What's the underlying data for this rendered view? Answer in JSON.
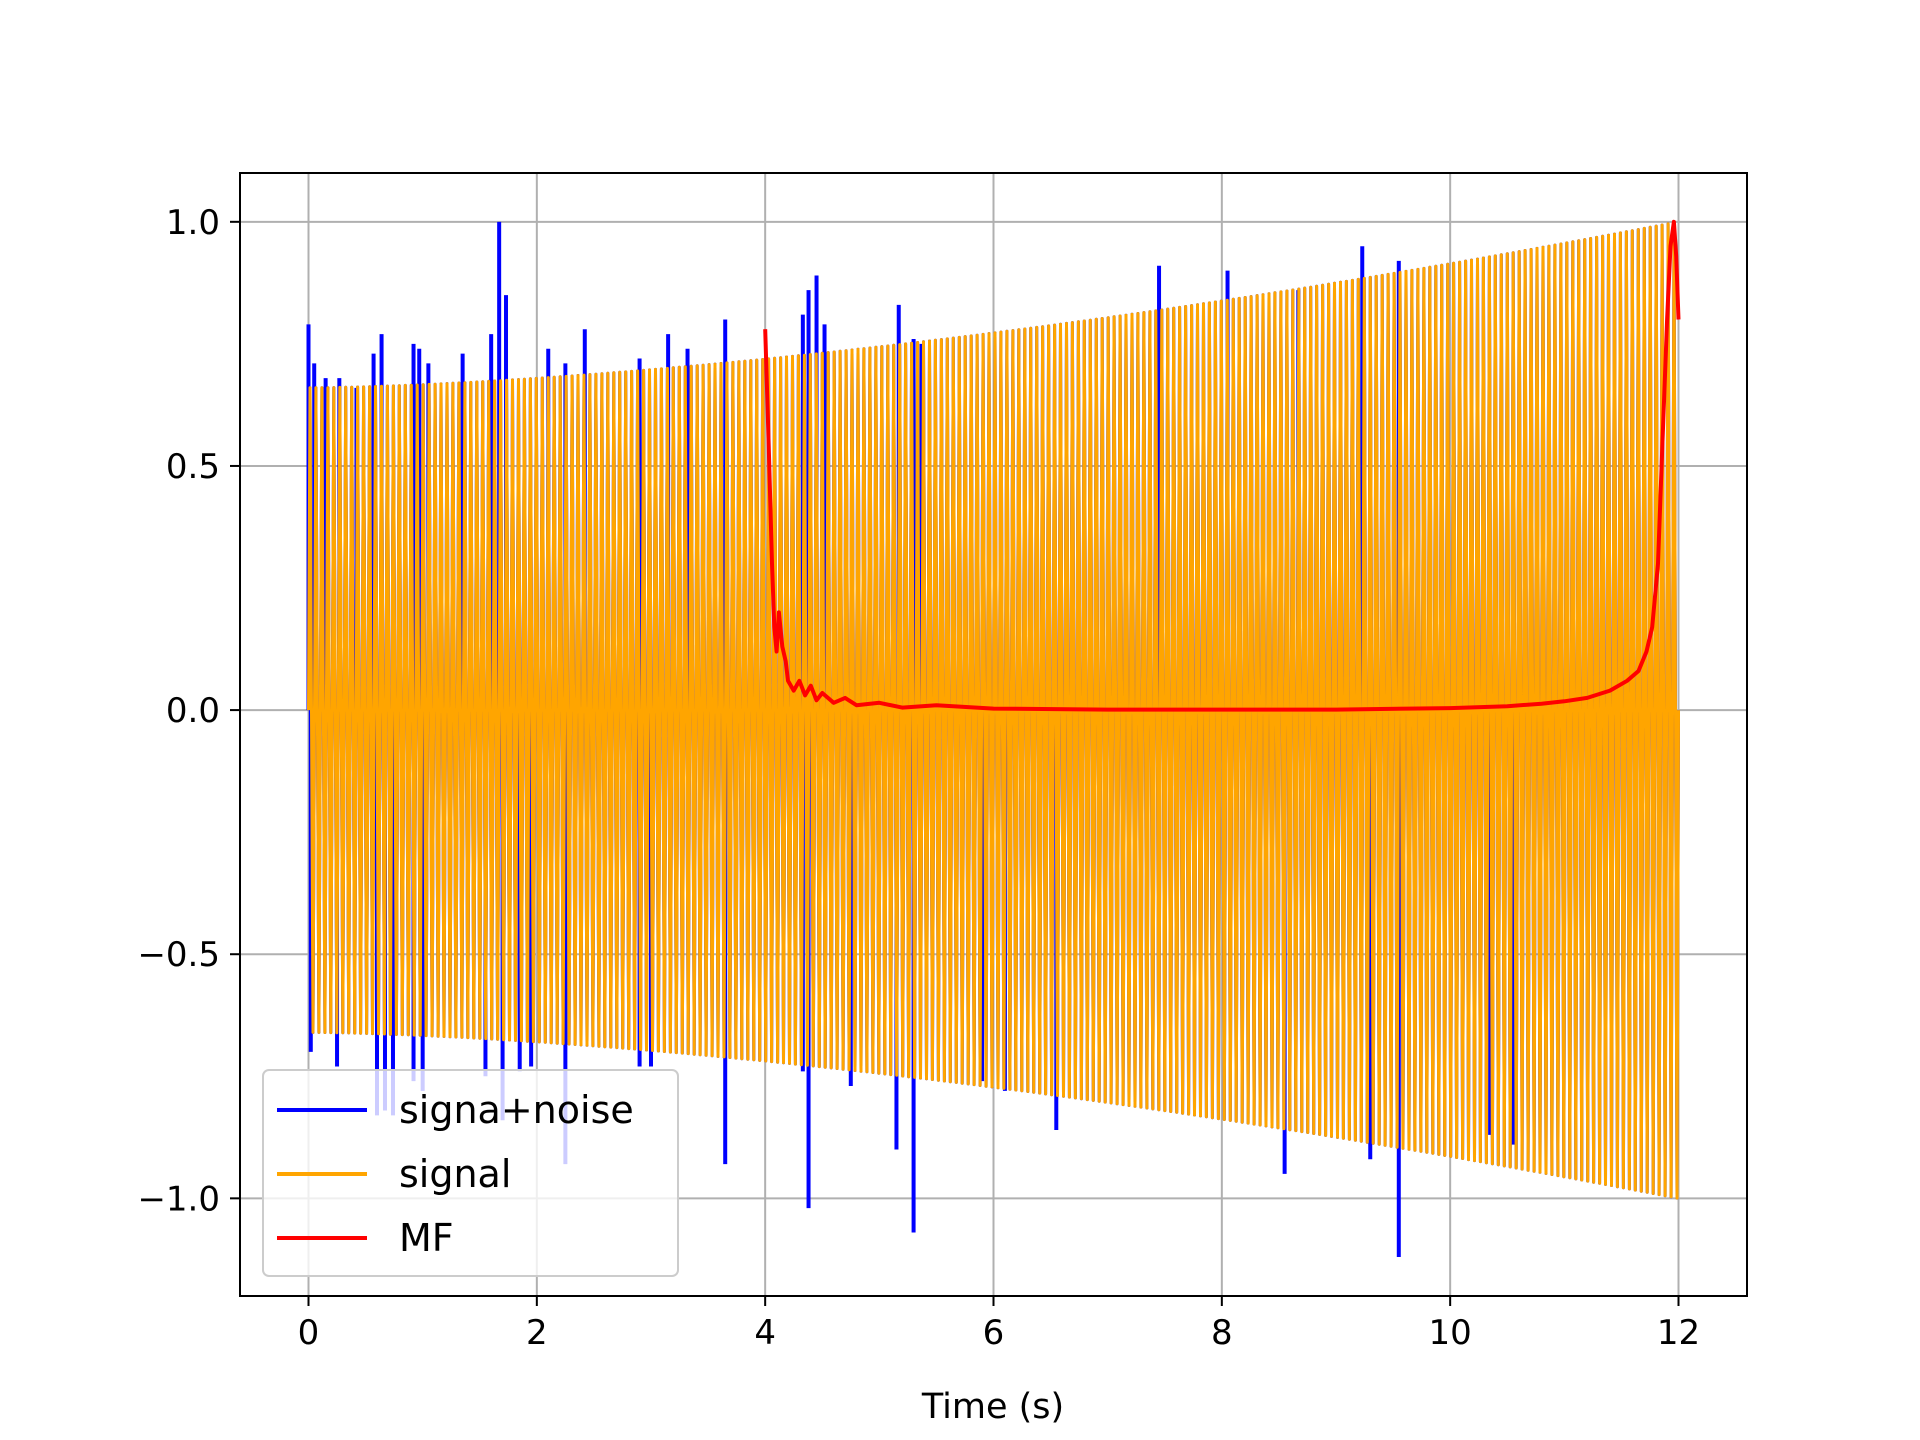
{
  "chart_data": {
    "type": "line",
    "title": "",
    "xlabel": "Time (s)",
    "ylabel": "",
    "xlim": [
      -0.6,
      12.6
    ],
    "ylim": [
      -1.2,
      1.1
    ],
    "x_ticks": [
      0,
      2,
      4,
      6,
      8,
      10,
      12
    ],
    "x_tick_labels": [
      "0",
      "2",
      "4",
      "6",
      "8",
      "10",
      "12"
    ],
    "y_ticks": [
      -1.0,
      -0.5,
      0.0,
      0.5,
      1.0
    ],
    "y_tick_labels": [
      "−1.0",
      "−0.5",
      "0.0",
      "0.5",
      "1.0"
    ],
    "grid": true,
    "legend_position": "lower-left",
    "series": [
      {
        "name": "signa+noise",
        "color": "#0000ff",
        "kind": "oscillating",
        "x_range": [
          0,
          12
        ],
        "envelope": {
          "start_amp": 0.66,
          "end_amp": 1.0
        },
        "spikes_up": [
          [
            0.0,
            0.79
          ],
          [
            0.05,
            0.71
          ],
          [
            0.15,
            0.68
          ],
          [
            0.27,
            0.68
          ],
          [
            0.42,
            0.66
          ],
          [
            0.57,
            0.73
          ],
          [
            0.64,
            0.77
          ],
          [
            0.92,
            0.75
          ],
          [
            0.97,
            0.74
          ],
          [
            1.05,
            0.71
          ],
          [
            1.35,
            0.73
          ],
          [
            1.6,
            0.77
          ],
          [
            1.67,
            1.0
          ],
          [
            1.73,
            0.85
          ],
          [
            2.1,
            0.74
          ],
          [
            2.25,
            0.71
          ],
          [
            2.42,
            0.78
          ],
          [
            2.9,
            0.72
          ],
          [
            3.15,
            0.77
          ],
          [
            3.32,
            0.74
          ],
          [
            3.65,
            0.8
          ],
          [
            4.33,
            0.81
          ],
          [
            4.38,
            0.86
          ],
          [
            4.45,
            0.89
          ],
          [
            4.52,
            0.79
          ],
          [
            5.17,
            0.83
          ],
          [
            5.3,
            0.76
          ],
          [
            5.37,
            0.75
          ],
          [
            7.45,
            0.91
          ],
          [
            8.05,
            0.9
          ],
          [
            8.67,
            0.86
          ],
          [
            9.23,
            0.95
          ],
          [
            9.55,
            0.92
          ]
        ],
        "spikes_down": [
          [
            0.02,
            -0.7
          ],
          [
            0.25,
            -0.73
          ],
          [
            0.6,
            -0.83
          ],
          [
            0.67,
            -0.82
          ],
          [
            0.74,
            -0.83
          ],
          [
            0.92,
            -0.76
          ],
          [
            1.0,
            -0.78
          ],
          [
            1.55,
            -0.75
          ],
          [
            1.7,
            -0.84
          ],
          [
            1.85,
            -0.74
          ],
          [
            1.95,
            -0.73
          ],
          [
            2.25,
            -0.93
          ],
          [
            2.9,
            -0.73
          ],
          [
            3.0,
            -0.73
          ],
          [
            3.65,
            -0.93
          ],
          [
            4.33,
            -0.74
          ],
          [
            4.38,
            -1.02
          ],
          [
            4.75,
            -0.77
          ],
          [
            5.15,
            -0.9
          ],
          [
            5.3,
            -1.07
          ],
          [
            5.9,
            -0.76
          ],
          [
            6.1,
            -0.78
          ],
          [
            6.55,
            -0.86
          ],
          [
            8.55,
            -0.95
          ],
          [
            9.3,
            -0.92
          ],
          [
            9.55,
            -1.12
          ],
          [
            10.35,
            -0.87
          ],
          [
            10.55,
            -0.89
          ]
        ]
      },
      {
        "name": "signal",
        "color": "#ffa500",
        "kind": "oscillating",
        "x_range": [
          0,
          12
        ],
        "envelope": {
          "start_amp": 0.66,
          "end_amp": 1.0
        }
      },
      {
        "name": "MF",
        "color": "#ff0000",
        "kind": "line",
        "points": [
          [
            4.0,
            0.78
          ],
          [
            4.03,
            0.55
          ],
          [
            4.06,
            0.3
          ],
          [
            4.08,
            0.17
          ],
          [
            4.1,
            0.12
          ],
          [
            4.12,
            0.2
          ],
          [
            4.15,
            0.13
          ],
          [
            4.18,
            0.1
          ],
          [
            4.2,
            0.06
          ],
          [
            4.25,
            0.04
          ],
          [
            4.3,
            0.06
          ],
          [
            4.35,
            0.03
          ],
          [
            4.4,
            0.05
          ],
          [
            4.45,
            0.02
          ],
          [
            4.5,
            0.035
          ],
          [
            4.6,
            0.015
          ],
          [
            4.7,
            0.025
          ],
          [
            4.8,
            0.01
          ],
          [
            5.0,
            0.015
          ],
          [
            5.2,
            0.005
          ],
          [
            5.5,
            0.01
          ],
          [
            6.0,
            0.003
          ],
          [
            7.0,
            0.001
          ],
          [
            9.0,
            0.001
          ],
          [
            10.0,
            0.004
          ],
          [
            10.5,
            0.008
          ],
          [
            10.8,
            0.013
          ],
          [
            11.0,
            0.018
          ],
          [
            11.2,
            0.025
          ],
          [
            11.4,
            0.04
          ],
          [
            11.55,
            0.06
          ],
          [
            11.65,
            0.08
          ],
          [
            11.72,
            0.12
          ],
          [
            11.77,
            0.17
          ],
          [
            11.82,
            0.3
          ],
          [
            11.86,
            0.55
          ],
          [
            11.9,
            0.8
          ],
          [
            11.93,
            0.95
          ],
          [
            11.96,
            1.0
          ],
          [
            11.98,
            0.93
          ],
          [
            12.0,
            0.8
          ]
        ]
      }
    ]
  }
}
